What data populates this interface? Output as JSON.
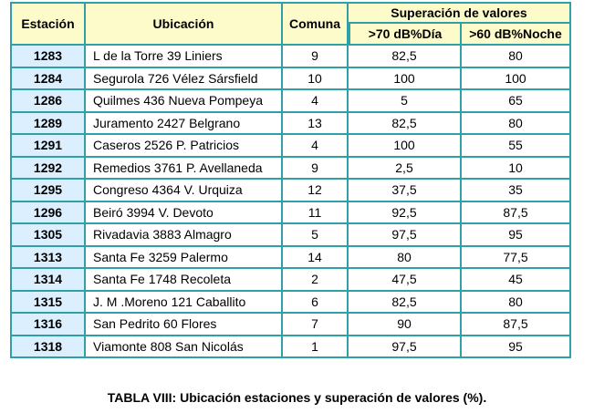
{
  "table": {
    "headers": {
      "estacion": "Estación",
      "ubicacion": "Ubicación",
      "comuna": "Comuna",
      "superacion": "Superación de valores",
      "dia": ">70 dB%Día",
      "noche": ">60 dB%Noche"
    },
    "rows": [
      {
        "estacion": "1283",
        "ubicacion": "L de la Torre 39 Liniers",
        "comuna": "9",
        "dia": "82,5",
        "noche": "80"
      },
      {
        "estacion": "1284",
        "ubicacion": "Segurola 726 Vélez Sársfield",
        "comuna": "10",
        "dia": "100",
        "noche": "100"
      },
      {
        "estacion": "1286",
        "ubicacion": "Quilmes 436 Nueva Pompeya",
        "comuna": "4",
        "dia": "5",
        "noche": "65"
      },
      {
        "estacion": "1289",
        "ubicacion": "Juramento 2427 Belgrano",
        "comuna": "13",
        "dia": "82,5",
        "noche": "80"
      },
      {
        "estacion": "1291",
        "ubicacion": "Caseros 2526 P. Patricios",
        "comuna": "4",
        "dia": "100",
        "noche": "55"
      },
      {
        "estacion": "1292",
        "ubicacion": "Remedios 3761 P. Avellaneda",
        "comuna": "9",
        "dia": "2,5",
        "noche": "10"
      },
      {
        "estacion": "1295",
        "ubicacion": "Congreso 4364 V. Urquiza",
        "comuna": "12",
        "dia": "37,5",
        "noche": "35"
      },
      {
        "estacion": "1296",
        "ubicacion": "Beiró 3994 V. Devoto",
        "comuna": "11",
        "dia": "92,5",
        "noche": "87,5"
      },
      {
        "estacion": "1305",
        "ubicacion": "Rivadavia 3883 Almagro",
        "comuna": "5",
        "dia": "97,5",
        "noche": "95"
      },
      {
        "estacion": "1313",
        "ubicacion": "Santa Fe 3259 Palermo",
        "comuna": "14",
        "dia": "80",
        "noche": "77,5"
      },
      {
        "estacion": "1314",
        "ubicacion": "Santa Fe 1748 Recoleta",
        "comuna": "2",
        "dia": "47,5",
        "noche": "45"
      },
      {
        "estacion": "1315",
        "ubicacion": "J. M .Moreno 121 Caballito",
        "comuna": "6",
        "dia": "82,5",
        "noche": "80"
      },
      {
        "estacion": "1316",
        "ubicacion": "San Pedrito 60 Flores",
        "comuna": "7",
        "dia": "90",
        "noche": "87,5"
      },
      {
        "estacion": "1318",
        "ubicacion": "Viamonte 808 San Nicolás",
        "comuna": "1",
        "dia": "97,5",
        "noche": "95"
      }
    ]
  },
  "caption": "TABLA VIII: Ubicación estaciones y superación de valores (%).",
  "colors": {
    "border": "#2f9fa8",
    "header_bg": "#fdfbca",
    "station_bg": "#dbefff"
  }
}
